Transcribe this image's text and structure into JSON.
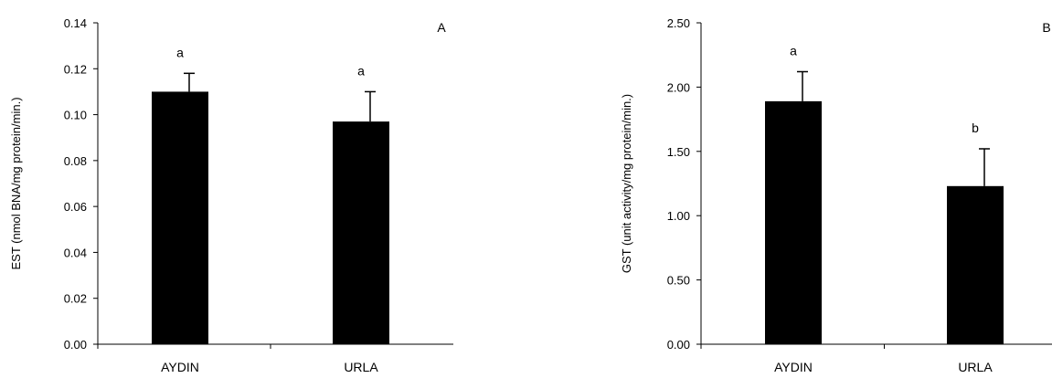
{
  "chart_data": [
    {
      "type": "bar",
      "panel_label": "A",
      "ylabel": "EST (nmol BNA/mg protein/min.)",
      "xlabel": "",
      "categories": [
        "AYDIN",
        "URLA"
      ],
      "values": [
        0.11,
        0.097
      ],
      "errors": [
        0.008,
        0.013
      ],
      "significance": [
        "a",
        "a"
      ],
      "ylim": [
        0,
        0.14
      ],
      "yticks": [
        "0.00",
        "0.02",
        "0.04",
        "0.06",
        "0.08",
        "0.10",
        "0.12",
        "0.14"
      ],
      "bar_color": "#000000",
      "grid": false
    },
    {
      "type": "bar",
      "panel_label": "B",
      "ylabel": "GST (unit activity/mg protein/min.)",
      "xlabel": "",
      "categories": [
        "AYDIN",
        "URLA"
      ],
      "values": [
        1.89,
        1.23
      ],
      "errors": [
        0.23,
        0.29
      ],
      "significance": [
        "a",
        "b"
      ],
      "ylim": [
        0,
        2.5
      ],
      "yticks": [
        "0.00",
        "0.50",
        "1.00",
        "1.50",
        "2.00",
        "2.50"
      ],
      "bar_color": "#000000",
      "grid": false
    }
  ]
}
